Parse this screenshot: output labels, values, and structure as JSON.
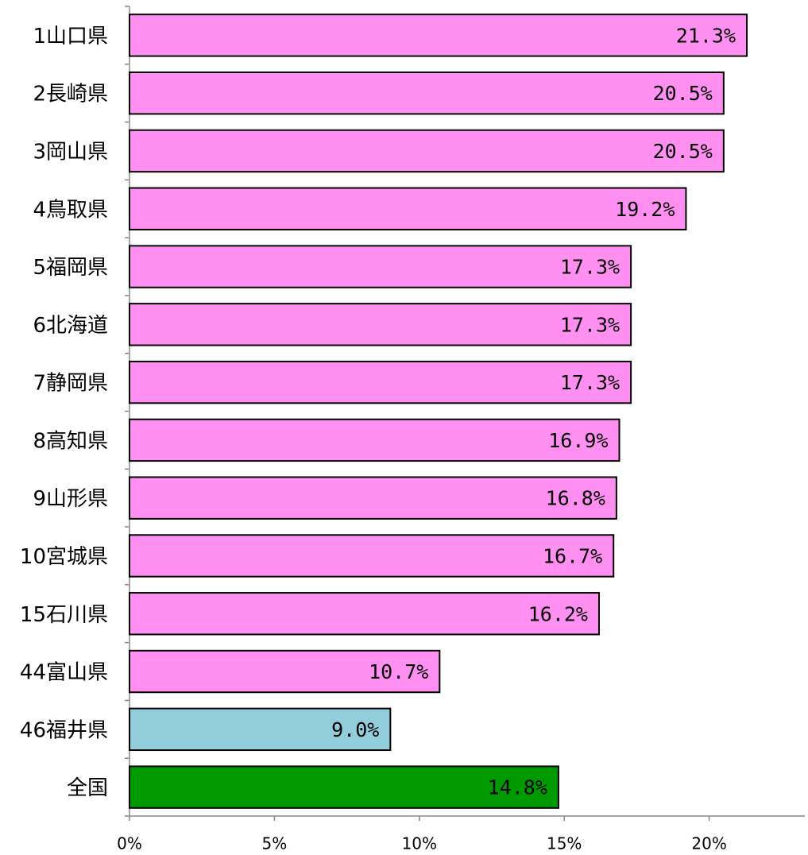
{
  "chart_data": {
    "type": "bar",
    "orientation": "horizontal",
    "categories": [
      "1山口県",
      "2長崎県",
      "3岡山県",
      "4鳥取県",
      "5福岡県",
      "6北海道",
      "7静岡県",
      "8高知県",
      "9山形県",
      "10宮城県",
      "15石川県",
      "44富山県",
      "46福井県",
      "全国"
    ],
    "values": [
      21.3,
      20.5,
      20.5,
      19.2,
      17.3,
      17.3,
      17.3,
      16.9,
      16.8,
      16.7,
      16.2,
      10.7,
      9.0,
      14.8
    ],
    "value_labels": [
      "21.3%",
      "20.5%",
      "20.5%",
      "19.2%",
      "17.3%",
      "17.3%",
      "17.3%",
      "16.9%",
      "16.8%",
      "16.7%",
      "16.2%",
      "10.7%",
      "9.0%",
      "14.8%"
    ],
    "colors": [
      "#ff8ff0",
      "#ff8ff0",
      "#ff8ff0",
      "#ff8ff0",
      "#ff8ff0",
      "#ff8ff0",
      "#ff8ff0",
      "#ff8ff0",
      "#ff8ff0",
      "#ff8ff0",
      "#ff8ff0",
      "#ff8ff0",
      "#92cddc",
      "#009900"
    ],
    "xlim": [
      0,
      23.3
    ],
    "xticks": [
      {
        "value": 0,
        "label": "0%"
      },
      {
        "value": 5,
        "label": "5%"
      },
      {
        "value": 10,
        "label": "10%"
      },
      {
        "value": 15,
        "label": "15%"
      },
      {
        "value": 20,
        "label": "20%"
      }
    ],
    "grid": false
  }
}
